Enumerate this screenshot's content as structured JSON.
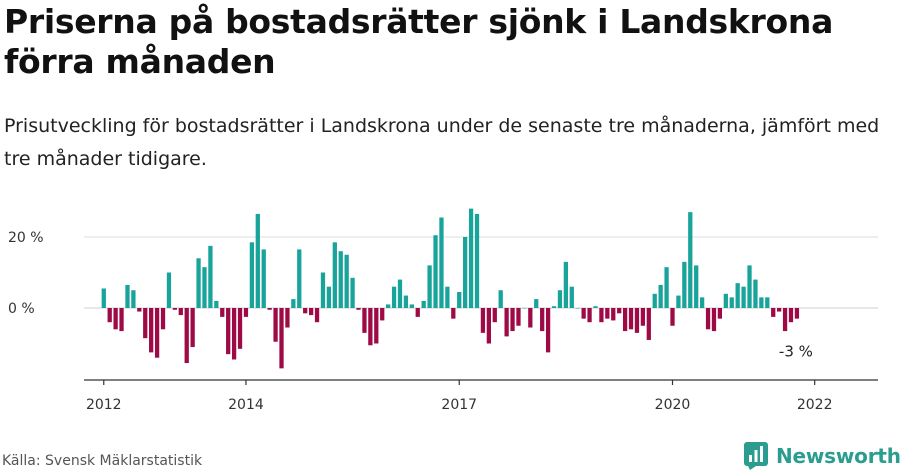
{
  "title": "Priserna på bostadsrätter sjönk i Landskrona förra månaden",
  "subtitle": "Prisutveckling för bostadsrätter i Landskrona under de senaste tre månaderna, jämfört med tre månader tidigare.",
  "source": "Källa: Svensk Mäklarstatistik",
  "brand": {
    "name": "Newsworthy",
    "icon": "newsworthy-logo-icon"
  },
  "colors": {
    "positive": "#18a39b",
    "negative": "#9e0a45",
    "axis": "#333333",
    "grid": "#dddddd"
  },
  "chart_data": {
    "type": "bar",
    "y_unit": "%",
    "ylim": [
      -20,
      30
    ],
    "y_ticks": [
      0,
      20
    ],
    "y_tick_labels": [
      "0 %",
      "20 %"
    ],
    "x_tick_labels": [
      "2012",
      "2014",
      "2017",
      "2020",
      "2022"
    ],
    "x_tick_positions": [
      2012.0,
      2014.0,
      2017.0,
      2020.0,
      2022.0
    ],
    "grid": true,
    "last_value_label": "-3 %",
    "series": [
      {
        "start": "2012-01",
        "values": [
          5.5,
          -4,
          -6,
          -6.5,
          6.5,
          5,
          -1,
          -8.5,
          -12.5,
          -14,
          -6,
          10,
          -0.5,
          -2,
          -15.5,
          -11,
          14,
          11.5,
          17.5,
          2,
          -2.5,
          -13,
          -14.5,
          -11.5,
          -2.5,
          18.5,
          26.5,
          16.5,
          -0.5,
          -9.5,
          -17,
          -5.5,
          2.5,
          16.5,
          -1.5,
          -2,
          -4,
          10,
          6,
          18.5,
          16,
          15,
          8.5,
          -0.5,
          -7,
          -10.5,
          -10,
          -3.5,
          1,
          6,
          8,
          3.5,
          1,
          -2.5,
          2,
          12,
          20.5,
          25.5,
          6,
          -3,
          4.5,
          20,
          28,
          26.5,
          -7,
          -10,
          -4,
          5,
          -8,
          -6.5,
          -5,
          0,
          -5.5,
          2.5,
          -6.5,
          -12.5,
          0.5,
          5,
          13,
          6,
          0,
          -3,
          -4,
          0.5,
          -4,
          -3,
          -3.5,
          -1.5,
          -6.5,
          -6,
          -7,
          -5,
          -9,
          4,
          6.5,
          11.5,
          -5,
          3.5,
          13,
          27,
          12,
          3,
          -6,
          -6.5,
          -3,
          4,
          3,
          7,
          6,
          12,
          8,
          3,
          3,
          -2.5,
          -1,
          -6.5,
          -4,
          -3
        ]
      }
    ]
  }
}
